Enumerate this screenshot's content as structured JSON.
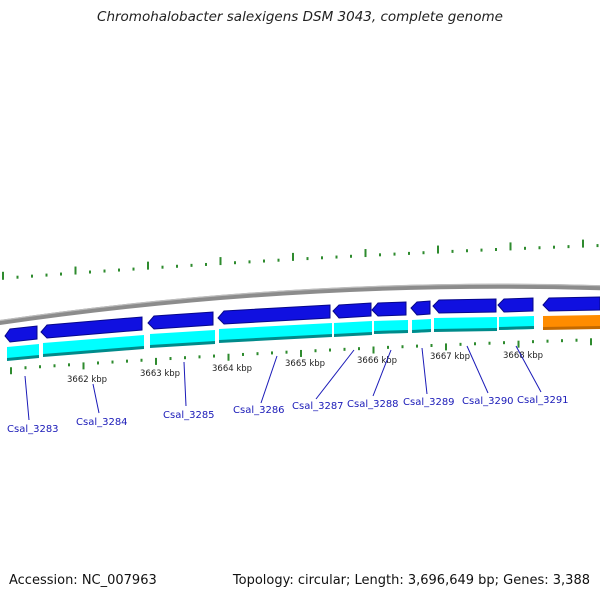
{
  "title": "Chromohalobacter salexigens DSM 3043, complete genome",
  "footer": {
    "accession": "Accession: NC_007963",
    "summary": "Topology: circular; Length: 3,696,649 bp; Genes: 3,388"
  },
  "kbp_labels": [
    "3662 kbp",
    "3663 kbp",
    "3664 kbp",
    "3665 kbp",
    "3666 kbp",
    "3667 kbp",
    "3668 kbp"
  ],
  "genes": [
    "Csal_3283",
    "Csal_3284",
    "Csal_3285",
    "Csal_3286",
    "Csal_3287",
    "Csal_3288",
    "Csal_3289",
    "Csal_3290",
    "Csal_3291"
  ],
  "colors": {
    "cds": "#1010e0",
    "cds_edge": "#06068a",
    "gene": "#00ffff",
    "gene_edge": "#008b8b",
    "rna": "#ff8c00",
    "backbone": "#8c8c8c",
    "tick": "#2e8b2e",
    "label": "#1a1ab8"
  }
}
